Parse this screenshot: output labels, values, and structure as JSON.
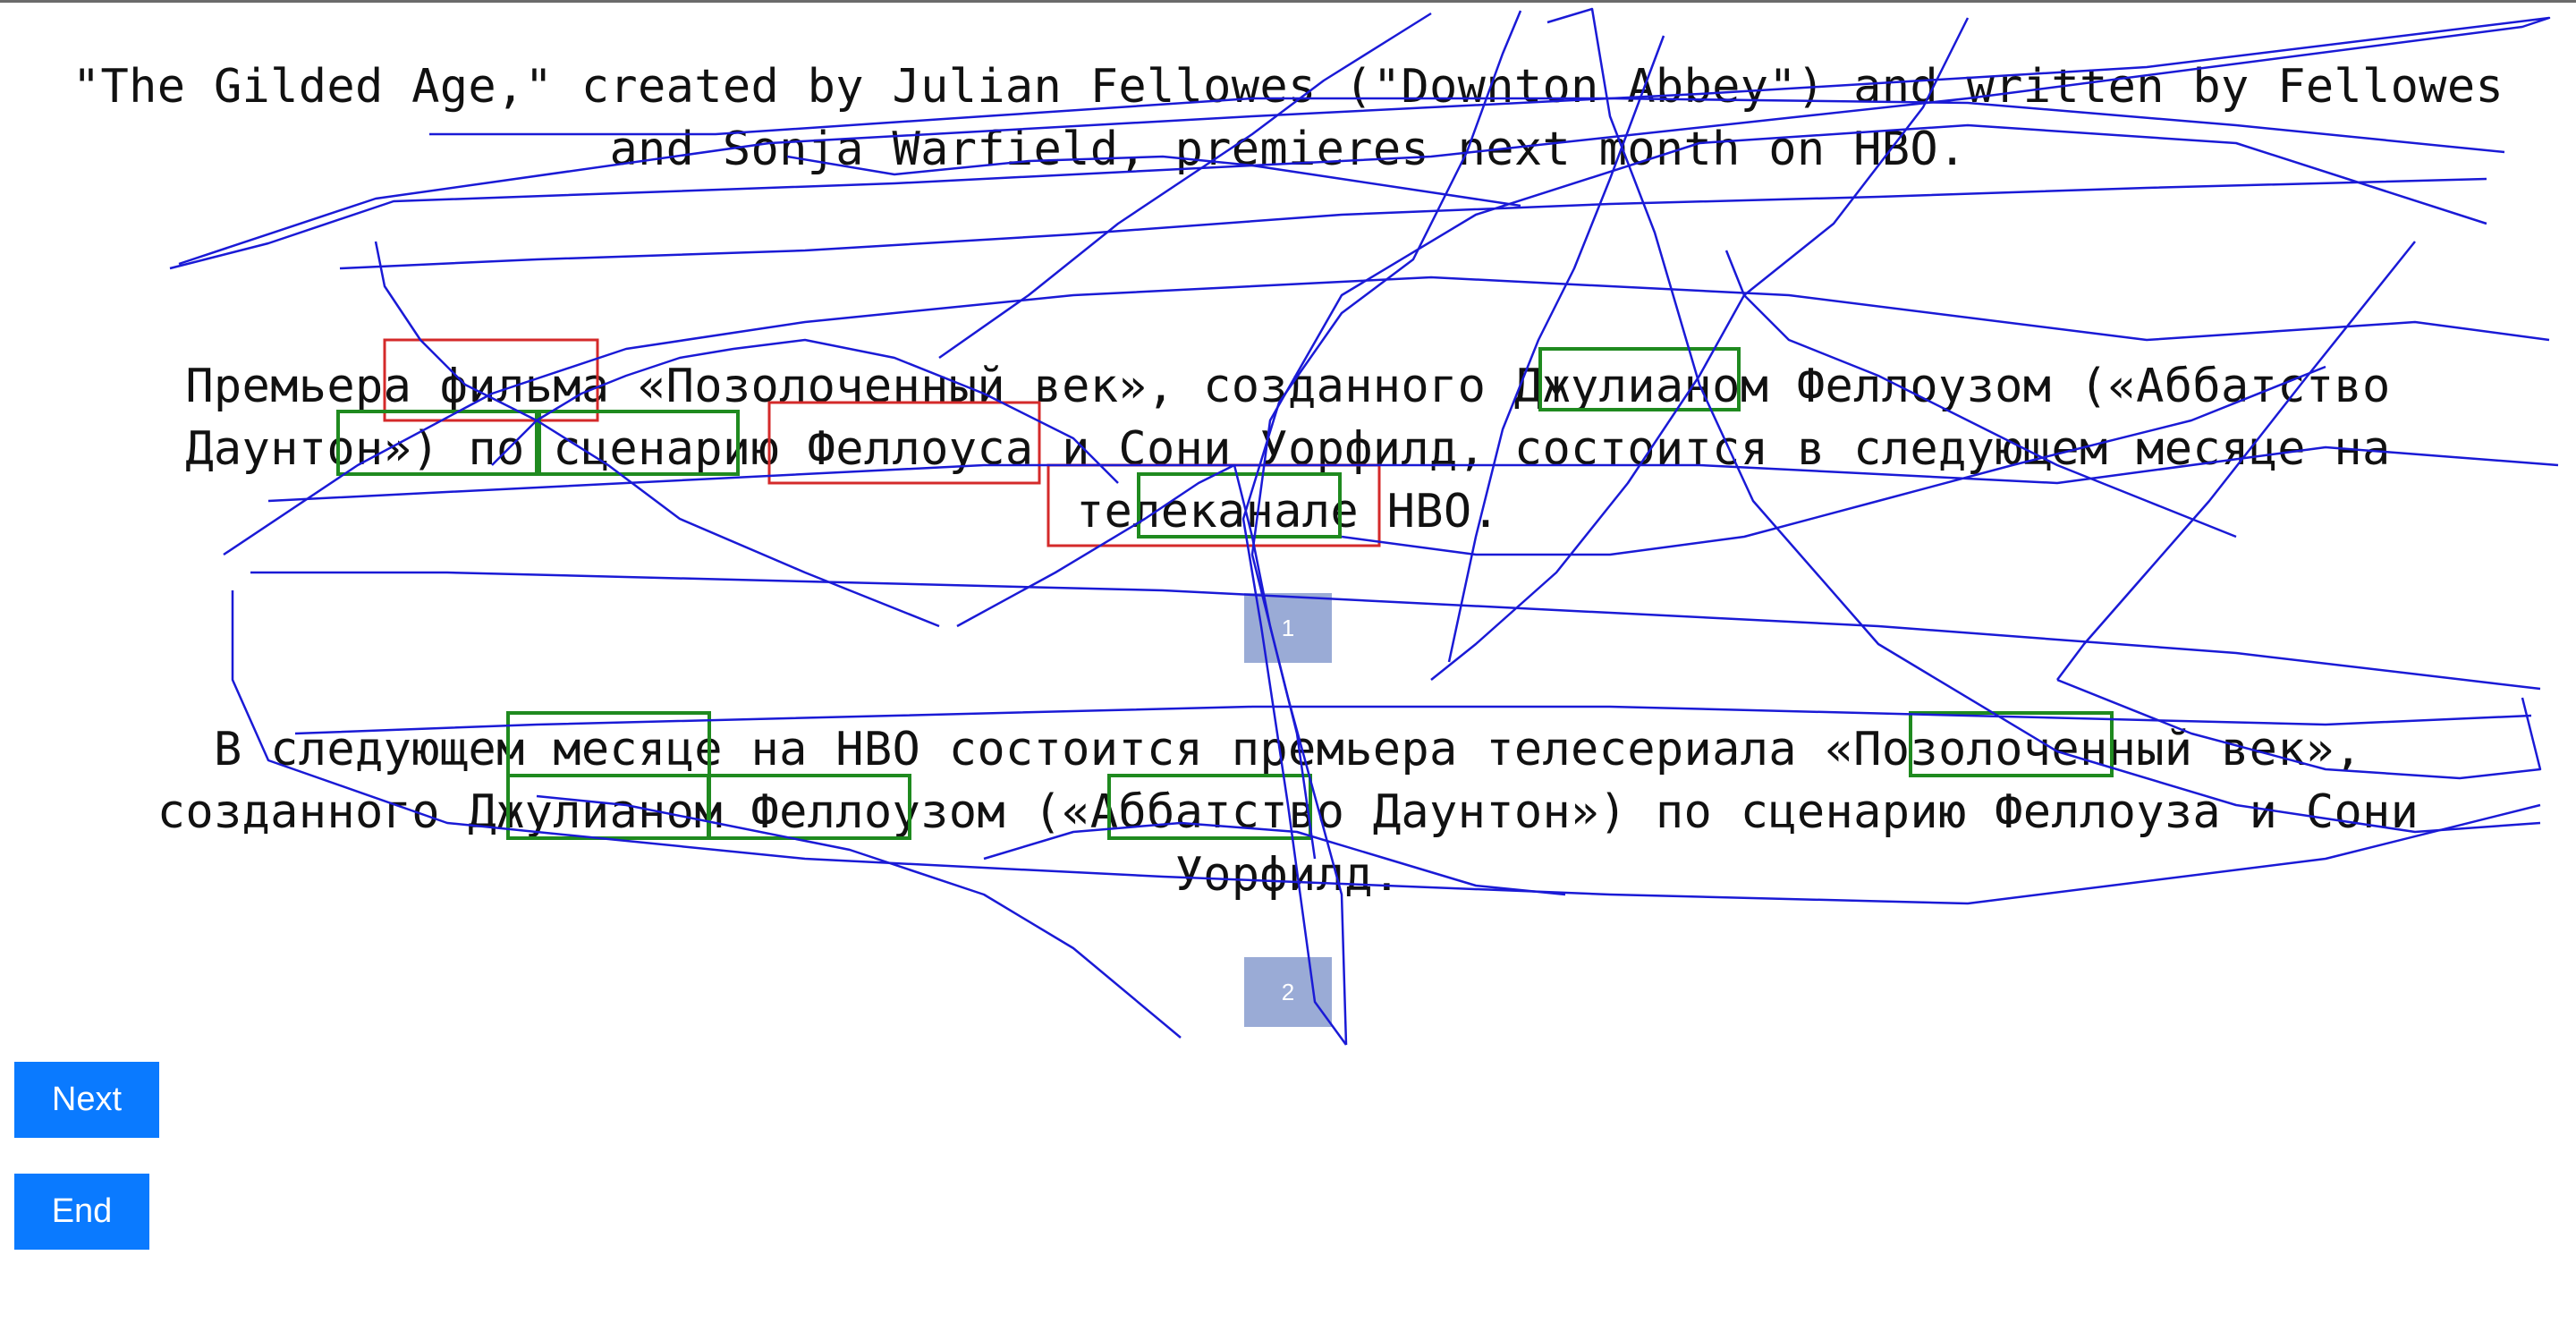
{
  "source_sentence": "\"The Gilded Age,\" created by Julian Fellowes (\"Downton Abbey\") and written by Fellowes\nand Sonja Warfield, premieres next month on HBO.",
  "hypotheses": [
    {
      "text": "Премьера фильма «Позолоченный век», созданного Джулианом Феллоузом («Аббатство\nДаунтон») по сценарию Феллоуса и Сони Уорфилд, состоится в следующем месяце на\nтелеканале HBO.",
      "badge": "1"
    },
    {
      "text": "В следующем месяце на HBO состоится премьера телесериала «Позолоченный век»,\nсозданного Джулианом Феллоузом («Аббатство Даунтон») по сценарию Феллоуза и Сони\nУорфилд.",
      "badge": "2"
    }
  ],
  "buttons": {
    "next": "Next",
    "end": "End"
  },
  "colors": {
    "ink_trace": "#1a1ad6",
    "error_box": "#d42a2a",
    "ok_box": "#1f8a1f",
    "button": "#0a7aff",
    "badge": "#9aabd6"
  }
}
